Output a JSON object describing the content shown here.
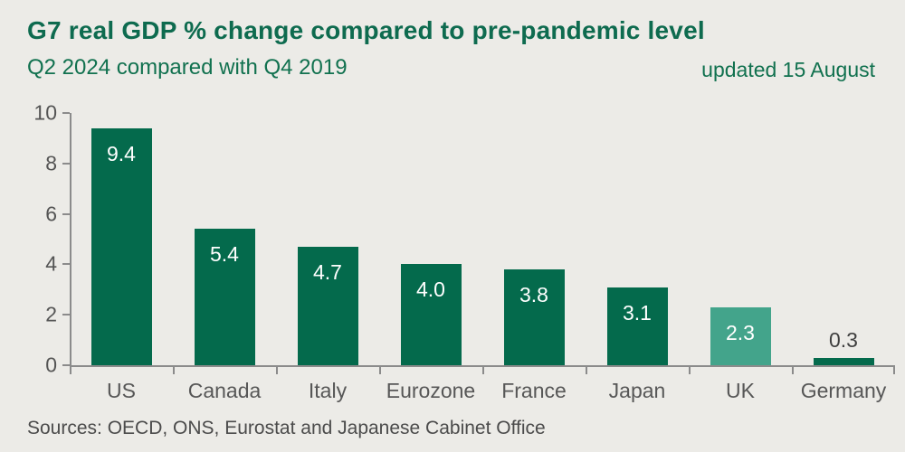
{
  "header": {
    "title": "G7 real GDP % change compared to pre-pandemic level",
    "subtitle": "Q2 2024 compared with Q4 2019",
    "updated": "updated 15 August"
  },
  "chart_data": {
    "type": "bar",
    "title": "G7 real GDP % change compared to pre-pandemic level",
    "subtitle": "Q2 2024 compared with Q4 2019",
    "categories": [
      "US",
      "Canada",
      "Italy",
      "Eurozone",
      "France",
      "Japan",
      "UK",
      "Germany"
    ],
    "values": [
      9.4,
      5.4,
      4.7,
      4.0,
      3.8,
      3.1,
      2.3,
      0.3
    ],
    "value_labels": [
      "9.4",
      "5.4",
      "4.7",
      "4.0",
      "3.8",
      "3.1",
      "2.3",
      "0.3"
    ],
    "xlabel": "",
    "ylabel": "",
    "ylim": [
      0,
      10
    ],
    "yticks": [
      0,
      2,
      4,
      6,
      8,
      10
    ],
    "grid": false,
    "legend": false,
    "highlight_category": "UK"
  },
  "footer": {
    "source": "Sources: OECD, ONS, Eurostat and Japanese Cabinet Office"
  },
  "colors": {
    "background": "#ECEBE7",
    "title_green": "#0E6B4F",
    "subtitle_green": "#11714F",
    "bar": "#046A4C",
    "highlight_bar": "#43A48B",
    "axis": "#8B8B8B",
    "tick_text": "#555555",
    "category_text": "#575757",
    "label_inside": "#FFFFFF",
    "label_outside": "#3F3F3F",
    "source_text": "#4B4B4B"
  }
}
